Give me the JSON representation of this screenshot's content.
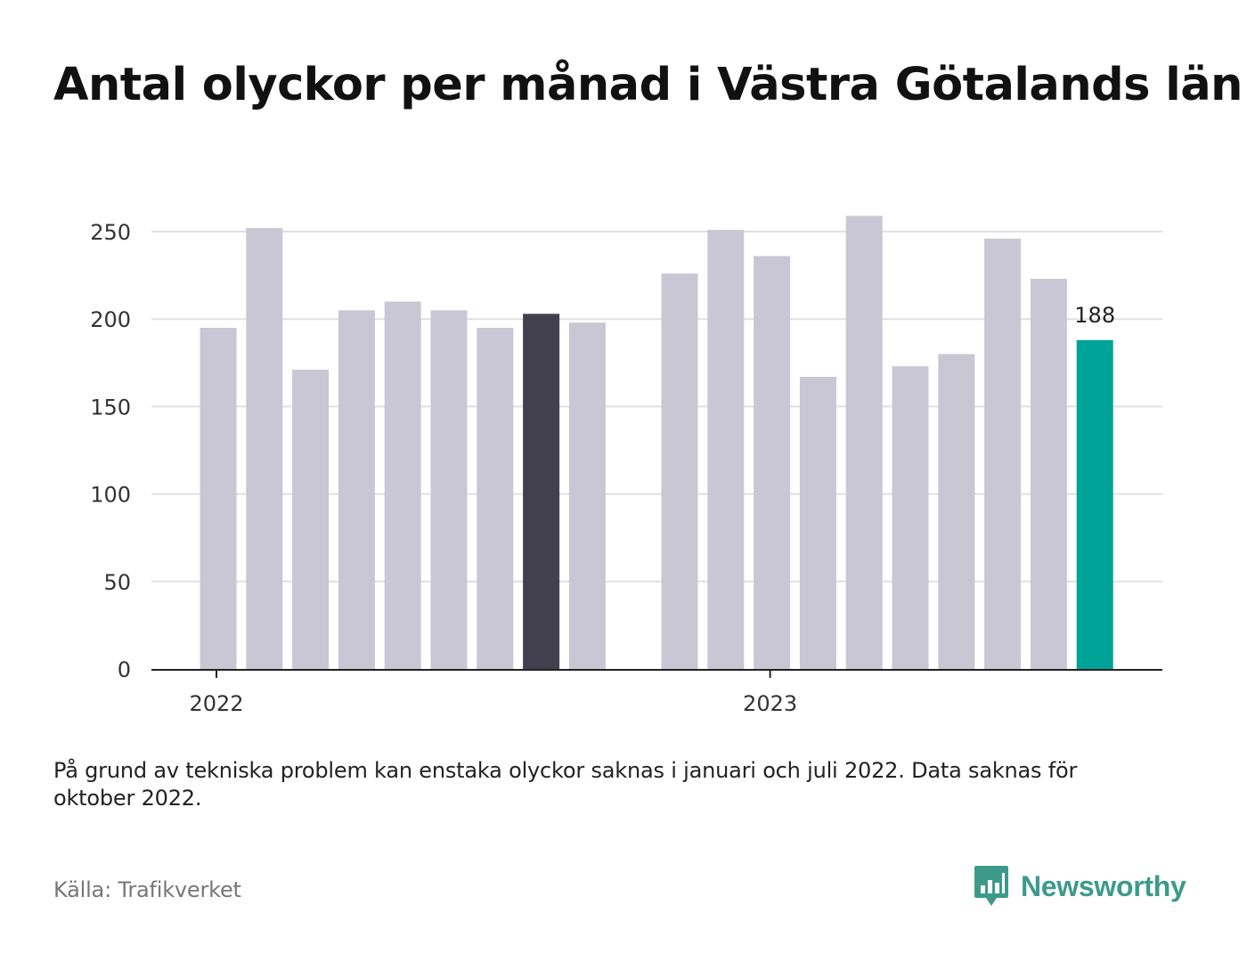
{
  "title": "Antal olyckor per månad i Västra Götalands län",
  "note": "På grund av tekniska problem kan enstaka olyckor saknas i januari och juli 2022. Data saknas för oktober 2022.",
  "source": "Källa: Trafikverket",
  "brand": {
    "name": "Newsworthy",
    "icon": "newsworthy-logo-icon",
    "color": "#3d9a8b"
  },
  "colors": {
    "bar_default": "#c8c7d3",
    "bar_highlight_dark": "#42404e",
    "bar_latest": "#00a398",
    "gridline": "#e0e0e0",
    "axis": "#222222"
  },
  "chart_data": {
    "type": "bar",
    "title": "Antal olyckor per månad i Västra Götalands län",
    "xlabel": "",
    "ylabel": "",
    "ylim": [
      0,
      265
    ],
    "yticks": [
      0,
      50,
      100,
      150,
      200,
      250
    ],
    "grid": true,
    "x_tick_labels": [
      {
        "label": "2022",
        "at": "2022-01"
      },
      {
        "label": "2023",
        "at": "2023-01"
      }
    ],
    "categories": [
      "2022-01",
      "2022-02",
      "2022-03",
      "2022-04",
      "2022-05",
      "2022-06",
      "2022-07",
      "2022-08",
      "2022-09",
      "2022-10",
      "2022-11",
      "2022-12",
      "2023-01",
      "2023-02",
      "2023-03",
      "2023-04",
      "2023-05",
      "2023-06",
      "2023-07",
      "2023-08"
    ],
    "values": [
      195,
      252,
      171,
      205,
      210,
      205,
      195,
      203,
      198,
      null,
      226,
      251,
      236,
      167,
      259,
      173,
      180,
      246,
      223,
      188
    ],
    "highlight": {
      "2022-08": "bar_highlight_dark",
      "2023-08": "bar_latest"
    },
    "data_labels": [
      {
        "category": "2023-08",
        "text": "188"
      }
    ]
  }
}
